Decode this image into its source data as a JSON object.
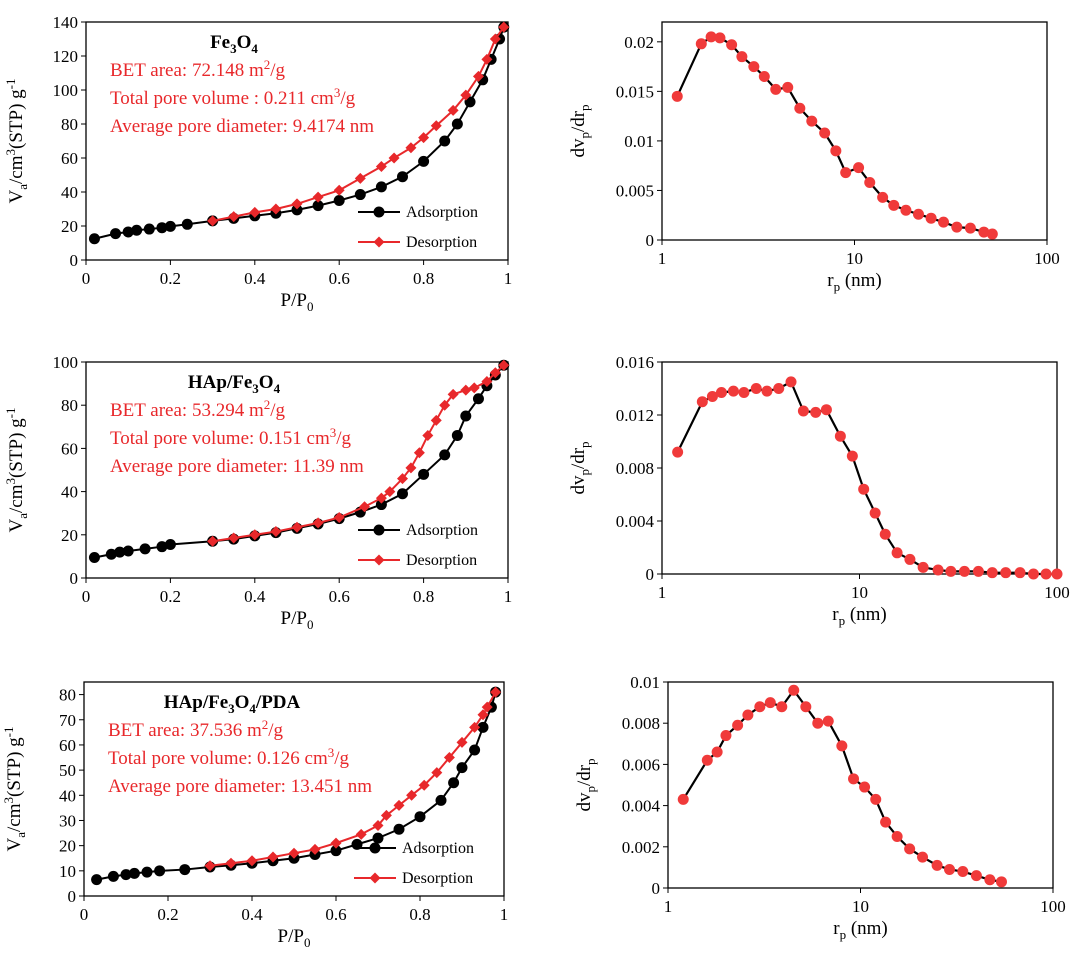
{
  "colors": {
    "adsorption": "#000000",
    "desorption": "#e8282b",
    "psd_line": "#000000",
    "psd_marker": "#f03a3a",
    "annotation": "#e8282b"
  },
  "chart_data": [
    {
      "type": "line",
      "id": "iso1",
      "title_main": "Fe",
      "title_sub": "3",
      "title_tail": "O",
      "title_sub2": "4",
      "title_rest": "",
      "xlabel_main": "P/P",
      "xlabel_sub": "0",
      "ylabel": {
        "a": "V",
        "b": "a",
        "c": "/cm",
        "d": "3",
        "e": "(STP) g",
        "f": "-1"
      },
      "xlim": [
        0,
        1
      ],
      "ylim": [
        0,
        140
      ],
      "xticks": [
        0,
        0.2,
        0.4,
        0.6,
        0.8,
        1
      ],
      "xtick_labels": [
        "0",
        "0.2",
        "0.4",
        "0.6",
        "0.8",
        "1"
      ],
      "yticks": [
        0,
        20,
        40,
        60,
        80,
        100,
        120,
        140
      ],
      "ytick_labels": [
        "0",
        "20",
        "40",
        "60",
        "80",
        "100",
        "120",
        "140"
      ],
      "annotations": [
        {
          "main": "BET area: 72.148 m",
          "sup": "2",
          "tail": "/g"
        },
        {
          "main": "Total pore volume : 0.211 cm",
          "sup": "3",
          "tail": "/g"
        },
        {
          "main": "Average pore diameter: 9.4174 nm",
          "sup": "",
          "tail": ""
        }
      ],
      "legend": [
        "Adsorption",
        "Desorption"
      ],
      "series": [
        {
          "name": "Adsorption",
          "x": [
            0.02,
            0.07,
            0.1,
            0.12,
            0.15,
            0.18,
            0.2,
            0.24,
            0.3,
            0.35,
            0.4,
            0.45,
            0.5,
            0.55,
            0.6,
            0.65,
            0.7,
            0.75,
            0.8,
            0.85,
            0.88,
            0.91,
            0.94,
            0.96,
            0.98,
            0.99
          ],
          "y": [
            12.5,
            15.5,
            16.5,
            17.5,
            18.2,
            19,
            19.8,
            21,
            23,
            24.5,
            26,
            27.5,
            29.5,
            32,
            35,
            38.5,
            43,
            49,
            58,
            70,
            80,
            93,
            106,
            118,
            130,
            137
          ]
        },
        {
          "name": "Desorption",
          "x": [
            0.99,
            0.97,
            0.95,
            0.93,
            0.9,
            0.87,
            0.83,
            0.8,
            0.77,
            0.73,
            0.7,
            0.65,
            0.6,
            0.55,
            0.5,
            0.45,
            0.4,
            0.35,
            0.3
          ],
          "y": [
            137,
            130,
            118,
            108,
            97,
            88,
            79,
            72,
            66,
            60,
            55,
            48,
            41,
            37,
            33,
            30,
            28,
            25.5,
            23
          ]
        }
      ]
    },
    {
      "type": "line",
      "id": "psd1",
      "xscale": "log",
      "xlabel_main": "r",
      "xlabel_sub": "p",
      "xlabel_tail": " (nm)",
      "ylabel": {
        "a": "dv",
        "b": "p",
        "c": "/dr",
        "d": "p"
      },
      "xlim": [
        1,
        100
      ],
      "ylim": [
        0,
        0.022
      ],
      "xticks": [
        1,
        10,
        100
      ],
      "xtick_labels": [
        "1",
        "10",
        "100"
      ],
      "yticks": [
        0,
        0.005,
        0.01,
        0.015,
        0.02
      ],
      "ytick_labels": [
        "0",
        "0.005",
        "0.01",
        "0.015",
        "0.02"
      ],
      "series": [
        {
          "name": "",
          "x": [
            1.2,
            1.6,
            1.8,
            2.0,
            2.3,
            2.6,
            3.0,
            3.4,
            3.9,
            4.5,
            5.2,
            6.0,
            7.0,
            8.0,
            9.0,
            10.5,
            12,
            14,
            16,
            18.5,
            21.5,
            25,
            29,
            34,
            40,
            47,
            52
          ],
          "y": [
            0.0145,
            0.0198,
            0.0205,
            0.0204,
            0.0197,
            0.0185,
            0.0175,
            0.0165,
            0.0152,
            0.0154,
            0.0133,
            0.012,
            0.0108,
            0.009,
            0.0068,
            0.0073,
            0.0058,
            0.0043,
            0.0035,
            0.003,
            0.0026,
            0.0022,
            0.0018,
            0.0013,
            0.0012,
            0.0008,
            0.0006
          ]
        }
      ]
    },
    {
      "type": "line",
      "id": "iso2",
      "title_main": "HAp/Fe",
      "title_sub": "3",
      "title_tail": "O",
      "title_sub2": "4",
      "title_rest": "",
      "xlabel_main": "P/P",
      "xlabel_sub": "0",
      "ylabel": {
        "a": "V",
        "b": "a",
        "c": "/cm",
        "d": "3",
        "e": "(STP) g",
        "f": "-1"
      },
      "xlim": [
        0,
        1
      ],
      "ylim": [
        0,
        100
      ],
      "xticks": [
        0,
        0.2,
        0.4,
        0.6,
        0.8,
        1
      ],
      "xtick_labels": [
        "0",
        "0.2",
        "0.4",
        "0.6",
        "0.8",
        "1"
      ],
      "yticks": [
        0,
        20,
        40,
        60,
        80,
        100
      ],
      "ytick_labels": [
        "0",
        "20",
        "40",
        "60",
        "80",
        "100"
      ],
      "annotations": [
        {
          "main": "BET area: 53.294 m",
          "sup": "2",
          "tail": "/g"
        },
        {
          "main": "Total pore volume: 0.151 cm",
          "sup": "3",
          "tail": "/g"
        },
        {
          "main": "Average pore diameter: 11.39 nm",
          "sup": "",
          "tail": ""
        }
      ],
      "legend": [
        "Adsorption",
        "Desorption"
      ],
      "series": [
        {
          "name": "Adsorption",
          "x": [
            0.02,
            0.06,
            0.08,
            0.1,
            0.14,
            0.18,
            0.2,
            0.3,
            0.35,
            0.4,
            0.45,
            0.5,
            0.55,
            0.6,
            0.65,
            0.7,
            0.75,
            0.8,
            0.85,
            0.88,
            0.9,
            0.93,
            0.95,
            0.97,
            0.99
          ],
          "y": [
            9.5,
            11,
            12,
            12.5,
            13.5,
            14.5,
            15.5,
            17,
            18,
            19.5,
            21,
            23,
            25,
            27.5,
            30.5,
            34,
            39,
            48,
            57,
            66,
            75,
            83,
            89,
            94,
            98.5
          ]
        },
        {
          "name": "Desorption",
          "x": [
            0.99,
            0.97,
            0.95,
            0.92,
            0.9,
            0.87,
            0.85,
            0.83,
            0.81,
            0.79,
            0.77,
            0.75,
            0.72,
            0.7,
            0.66,
            0.6,
            0.55,
            0.5,
            0.45,
            0.4,
            0.35,
            0.3
          ],
          "y": [
            98.5,
            95,
            91,
            88,
            87,
            85,
            80,
            73,
            66,
            58,
            51,
            46,
            40,
            37,
            33,
            28,
            25.5,
            23.5,
            21.5,
            20,
            18.5,
            17
          ]
        }
      ]
    },
    {
      "type": "line",
      "id": "psd2",
      "xscale": "log",
      "xlabel_main": "r",
      "xlabel_sub": "p",
      "xlabel_tail": " (nm)",
      "ylabel": {
        "a": "dv",
        "b": "p",
        "c": "/dr",
        "d": "p"
      },
      "xlim": [
        1,
        100
      ],
      "ylim": [
        0,
        0.016
      ],
      "xticks": [
        1,
        10,
        100
      ],
      "xtick_labels": [
        "1",
        "10",
        "100"
      ],
      "yticks": [
        0,
        0.004,
        0.008,
        0.012,
        0.016
      ],
      "ytick_labels": [
        "0",
        "0.004",
        "0.008",
        "0.012",
        "0.016"
      ],
      "series": [
        {
          "name": "",
          "x": [
            1.2,
            1.6,
            1.8,
            2.0,
            2.3,
            2.6,
            3.0,
            3.4,
            3.9,
            4.5,
            5.2,
            6.0,
            6.8,
            8.0,
            9.2,
            10.5,
            12,
            13.5,
            15.5,
            18,
            21,
            25,
            29,
            34,
            40,
            47,
            55,
            65,
            76,
            88,
            100
          ],
          "y": [
            0.0092,
            0.013,
            0.0134,
            0.0137,
            0.0138,
            0.0137,
            0.014,
            0.0138,
            0.014,
            0.0145,
            0.0123,
            0.0122,
            0.0124,
            0.0104,
            0.0089,
            0.0064,
            0.0046,
            0.003,
            0.0016,
            0.0011,
            0.0005,
            0.0003,
            0.0002,
            0.0002,
            0.0002,
            0.0001,
            0.0001,
            0.0001,
            0.0,
            0.0,
            0.0
          ]
        }
      ]
    },
    {
      "type": "line",
      "id": "iso3",
      "title_main": "HAp/Fe",
      "title_sub": "3",
      "title_tail": "O",
      "title_sub2": "4",
      "title_rest": "/PDA",
      "xlabel_main": "P/P",
      "xlabel_sub": "0",
      "ylabel": {
        "a": "V",
        "b": "a",
        "c": "/cm",
        "d": "3",
        "e": "(STP) g",
        "f": "-1"
      },
      "xlim": [
        0,
        1
      ],
      "ylim": [
        0,
        85
      ],
      "xticks": [
        0,
        0.2,
        0.4,
        0.6,
        0.8,
        1
      ],
      "xtick_labels": [
        "0",
        "0.2",
        "0.4",
        "0.6",
        "0.8",
        "1"
      ],
      "yticks": [
        0,
        10,
        20,
        30,
        40,
        50,
        60,
        70,
        80
      ],
      "ytick_labels": [
        "0",
        "10",
        "20",
        "30",
        "40",
        "50",
        "60",
        "70",
        "80"
      ],
      "annotations": [
        {
          "main": "BET area: 37.536 m",
          "sup": "2",
          "tail": "/g"
        },
        {
          "main": "Total pore volume: 0.126 cm",
          "sup": "3",
          "tail": "/g"
        },
        {
          "main": "Average pore diameter: 13.451 nm",
          "sup": "",
          "tail": ""
        }
      ],
      "legend": [
        "Adsorption",
        "Desorption"
      ],
      "series": [
        {
          "name": "Adsorption",
          "x": [
            0.03,
            0.07,
            0.1,
            0.12,
            0.15,
            0.18,
            0.24,
            0.3,
            0.35,
            0.4,
            0.45,
            0.5,
            0.55,
            0.6,
            0.65,
            0.7,
            0.75,
            0.8,
            0.85,
            0.88,
            0.9,
            0.93,
            0.95,
            0.97,
            0.98
          ],
          "y": [
            6.5,
            7.8,
            8.5,
            9,
            9.5,
            10,
            10.5,
            11.5,
            12.2,
            13,
            14,
            15,
            16.5,
            18,
            20.5,
            23,
            26.5,
            31.5,
            38,
            45,
            51,
            58,
            67,
            75,
            81
          ]
        },
        {
          "name": "Desorption",
          "x": [
            0.98,
            0.96,
            0.95,
            0.93,
            0.9,
            0.87,
            0.84,
            0.81,
            0.78,
            0.75,
            0.72,
            0.7,
            0.66,
            0.6,
            0.55,
            0.5,
            0.45,
            0.4,
            0.35,
            0.3
          ],
          "y": [
            81,
            75,
            72,
            67,
            61,
            55,
            49,
            44,
            40,
            36,
            32,
            28,
            24.5,
            21,
            18.5,
            17,
            15.5,
            14,
            13,
            12
          ]
        }
      ]
    },
    {
      "type": "line",
      "id": "psd3",
      "xscale": "log",
      "xlabel_main": "r",
      "xlabel_sub": "p",
      "xlabel_tail": " (nm)",
      "ylabel": {
        "a": "dv",
        "b": "p",
        "c": "/dr",
        "d": "p"
      },
      "xlim": [
        1,
        100
      ],
      "ylim": [
        0,
        0.01
      ],
      "xticks": [
        1,
        10,
        100
      ],
      "xtick_labels": [
        "1",
        "10",
        "100"
      ],
      "yticks": [
        0,
        0.002,
        0.004,
        0.006,
        0.008,
        0.01
      ],
      "ytick_labels": [
        "0",
        "0.002",
        "0.004",
        "0.006",
        "0.008",
        "0.01"
      ],
      "series": [
        {
          "name": "",
          "x": [
            1.2,
            1.6,
            1.8,
            2.0,
            2.3,
            2.6,
            3.0,
            3.4,
            3.9,
            4.5,
            5.2,
            6.0,
            6.8,
            8.0,
            9.2,
            10.5,
            12,
            13.5,
            15.5,
            18,
            21,
            25,
            29,
            34,
            40,
            47,
            54
          ],
          "y": [
            0.0043,
            0.0062,
            0.0066,
            0.0074,
            0.0079,
            0.0084,
            0.0088,
            0.009,
            0.0088,
            0.0096,
            0.0088,
            0.008,
            0.0081,
            0.0069,
            0.0053,
            0.0049,
            0.0043,
            0.0032,
            0.0025,
            0.0019,
            0.0015,
            0.0011,
            0.0009,
            0.0008,
            0.0006,
            0.0004,
            0.0003
          ]
        }
      ]
    }
  ]
}
